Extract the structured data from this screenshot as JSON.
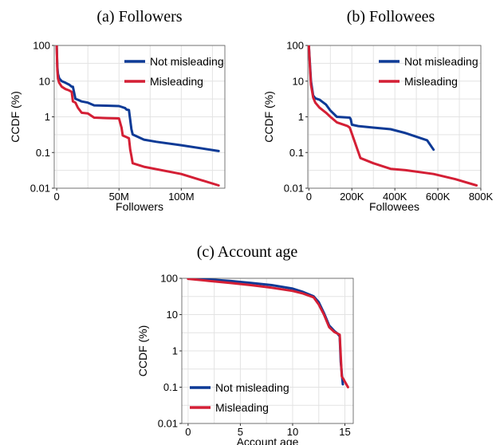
{
  "figure": {
    "colors": {
      "not_misleading": "#0d3a96",
      "misleading": "#d41f35"
    }
  },
  "chart_data": [
    {
      "type": "line",
      "title": "(a) Followers",
      "xlabel": "Followers",
      "ylabel": "CCDF (%)",
      "xlim": [
        -2000000,
        135000000
      ],
      "ylim": [
        0.01,
        100
      ],
      "yscale": "log",
      "xticks": [
        0,
        50000000,
        100000000
      ],
      "xtick_labels": [
        "0",
        "50M",
        "100M"
      ],
      "yticks": [
        0.01,
        0.1,
        1,
        10,
        100
      ],
      "ytick_labels": [
        "0.01",
        "0.1",
        "1",
        "10",
        "100"
      ],
      "grid": true,
      "legend": "top-right",
      "series": [
        {
          "name": "Not misleading",
          "color": "#0d3a96",
          "x": [
            0,
            500000,
            1000000,
            2000000,
            4000000,
            7000000,
            10000000,
            12000000,
            13000000,
            15000000,
            17000000,
            20000000,
            25000000,
            30000000,
            40000000,
            50000000,
            52000000,
            55000000,
            56000000,
            58000000,
            60000000,
            61000000,
            70000000,
            80000000,
            100000000,
            130000000
          ],
          "y": [
            100,
            25,
            16,
            12,
            10,
            9,
            8,
            7,
            7,
            3.2,
            3.0,
            2.7,
            2.5,
            2.1,
            2.05,
            2.0,
            1.9,
            1.75,
            1.6,
            1.55,
            0.45,
            0.32,
            0.23,
            0.2,
            0.16,
            0.11
          ]
        },
        {
          "name": "Misleading",
          "color": "#d41f35",
          "x": [
            0,
            500000,
            1000000,
            2000000,
            4000000,
            7000000,
            10000000,
            12000000,
            13000000,
            15000000,
            17000000,
            20000000,
            25000000,
            30000000,
            40000000,
            50000000,
            52000000,
            53000000,
            55000000,
            58000000,
            59000000,
            60000000,
            61000000,
            70000000,
            100000000,
            130000000
          ],
          "y": [
            100,
            20,
            12,
            9,
            7,
            6,
            5.5,
            5,
            2.7,
            2.5,
            1.8,
            1.3,
            1.25,
            0.95,
            0.92,
            0.9,
            0.5,
            0.3,
            0.28,
            0.25,
            0.12,
            0.08,
            0.05,
            0.04,
            0.025,
            0.012
          ]
        }
      ]
    },
    {
      "type": "line",
      "title": "(b) Followees",
      "xlabel": "Followees",
      "ylabel": "CCDF (%)",
      "xlim": [
        -5000,
        800000
      ],
      "ylim": [
        0.01,
        100
      ],
      "yscale": "log",
      "xticks": [
        0,
        200000,
        400000,
        600000,
        800000
      ],
      "xtick_labels": [
        "0",
        "200K",
        "400K",
        "600K",
        "800K"
      ],
      "yticks": [
        0.01,
        0.1,
        1,
        10,
        100
      ],
      "ytick_labels": [
        "0.01",
        "0.1",
        "1",
        "10",
        "100"
      ],
      "grid": true,
      "legend": "top-right",
      "series": [
        {
          "name": "Not misleading",
          "color": "#0d3a96",
          "x": [
            0,
            5000,
            10000,
            20000,
            30000,
            50000,
            80000,
            100000,
            130000,
            190000,
            195000,
            200000,
            230000,
            300000,
            380000,
            450000,
            550000,
            580000
          ],
          "y": [
            100,
            30,
            10,
            4,
            3.3,
            3.0,
            2.2,
            1.5,
            1.0,
            0.95,
            0.85,
            0.6,
            0.55,
            0.5,
            0.45,
            0.35,
            0.22,
            0.12
          ]
        },
        {
          "name": "Misleading",
          "color": "#d41f35",
          "x": [
            0,
            5000,
            10000,
            20000,
            30000,
            50000,
            80000,
            100000,
            130000,
            180000,
            190000,
            240000,
            300000,
            380000,
            450000,
            580000,
            680000,
            780000
          ],
          "y": [
            100,
            25,
            8,
            3.5,
            2.5,
            1.8,
            1.3,
            1.0,
            0.7,
            0.55,
            0.5,
            0.07,
            0.05,
            0.035,
            0.032,
            0.025,
            0.018,
            0.012
          ]
        }
      ]
    },
    {
      "type": "line",
      "title": "(c) Account age",
      "xlabel": "Account age",
      "ylabel": "CCDF (%)",
      "xlim": [
        -0.6,
        15.8
      ],
      "ylim": [
        0.01,
        100
      ],
      "yscale": "log",
      "xticks": [
        0,
        5,
        10,
        15
      ],
      "xtick_labels": [
        "0",
        "5",
        "10",
        "15"
      ],
      "yticks": [
        0.01,
        0.1,
        1,
        10,
        100
      ],
      "ytick_labels": [
        "0.01",
        "0.1",
        "1",
        "10",
        "100"
      ],
      "grid": true,
      "legend": "bottom-left",
      "series": [
        {
          "name": "Not misleading",
          "color": "#0d3a96",
          "x": [
            0,
            2,
            4,
            6,
            8,
            10,
            11,
            12,
            12.5,
            13,
            13.5,
            14,
            14.3,
            14.5,
            14.6,
            14.8
          ],
          "y": [
            98,
            93,
            85,
            75,
            65,
            52,
            42,
            32,
            22,
            11,
            5,
            3.5,
            3.0,
            2.5,
            0.5,
            0.12
          ]
        },
        {
          "name": "Misleading",
          "color": "#d41f35",
          "x": [
            0,
            2,
            4,
            6,
            8,
            10,
            11,
            12,
            12.5,
            13,
            13.5,
            14,
            14.3,
            14.5,
            14.7,
            15.3
          ],
          "y": [
            97,
            85,
            75,
            65,
            55,
            45,
            38,
            30,
            19,
            10,
            4.5,
            3.3,
            3.0,
            2.8,
            0.2,
            0.1
          ]
        }
      ]
    }
  ]
}
